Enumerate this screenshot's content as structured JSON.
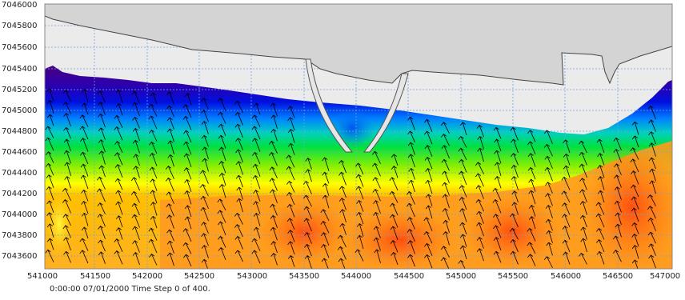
{
  "map": {
    "x_ticks": [
      "541000",
      "541500",
      "542000",
      "542500",
      "543000",
      "543500",
      "544000",
      "544500",
      "545000",
      "545500",
      "546000",
      "546500",
      "547000"
    ],
    "y_ticks": [
      "7046000",
      "7045800",
      "7045600",
      "7045400",
      "7045200",
      "7045000",
      "7044800",
      "7044600",
      "7044400",
      "7044200",
      "7044000",
      "7043800",
      "7043600"
    ],
    "x_range": [
      541000,
      547000
    ],
    "y_range": [
      7043500,
      7046000
    ],
    "grid": true,
    "colors": {
      "land": "#d4d4d4",
      "water_background": "#ebebeb",
      "grid_line": "#6fa6e0",
      "vector_arrow": "#000000",
      "ramp": [
        "#4a0080",
        "#2a00b0",
        "#0010e0",
        "#0080ff",
        "#00d0c0",
        "#00e040",
        "#90f000",
        "#ffff00",
        "#ffc000",
        "#ff9a20",
        "#ff7a10",
        "#ff4a10"
      ]
    },
    "vector_field": "black arrows pointing north-northwest",
    "land_icon": "coastline-land-mass"
  },
  "status": {
    "time_text": "0:00:00 07/01/2000  Time Step 0 of 400."
  }
}
